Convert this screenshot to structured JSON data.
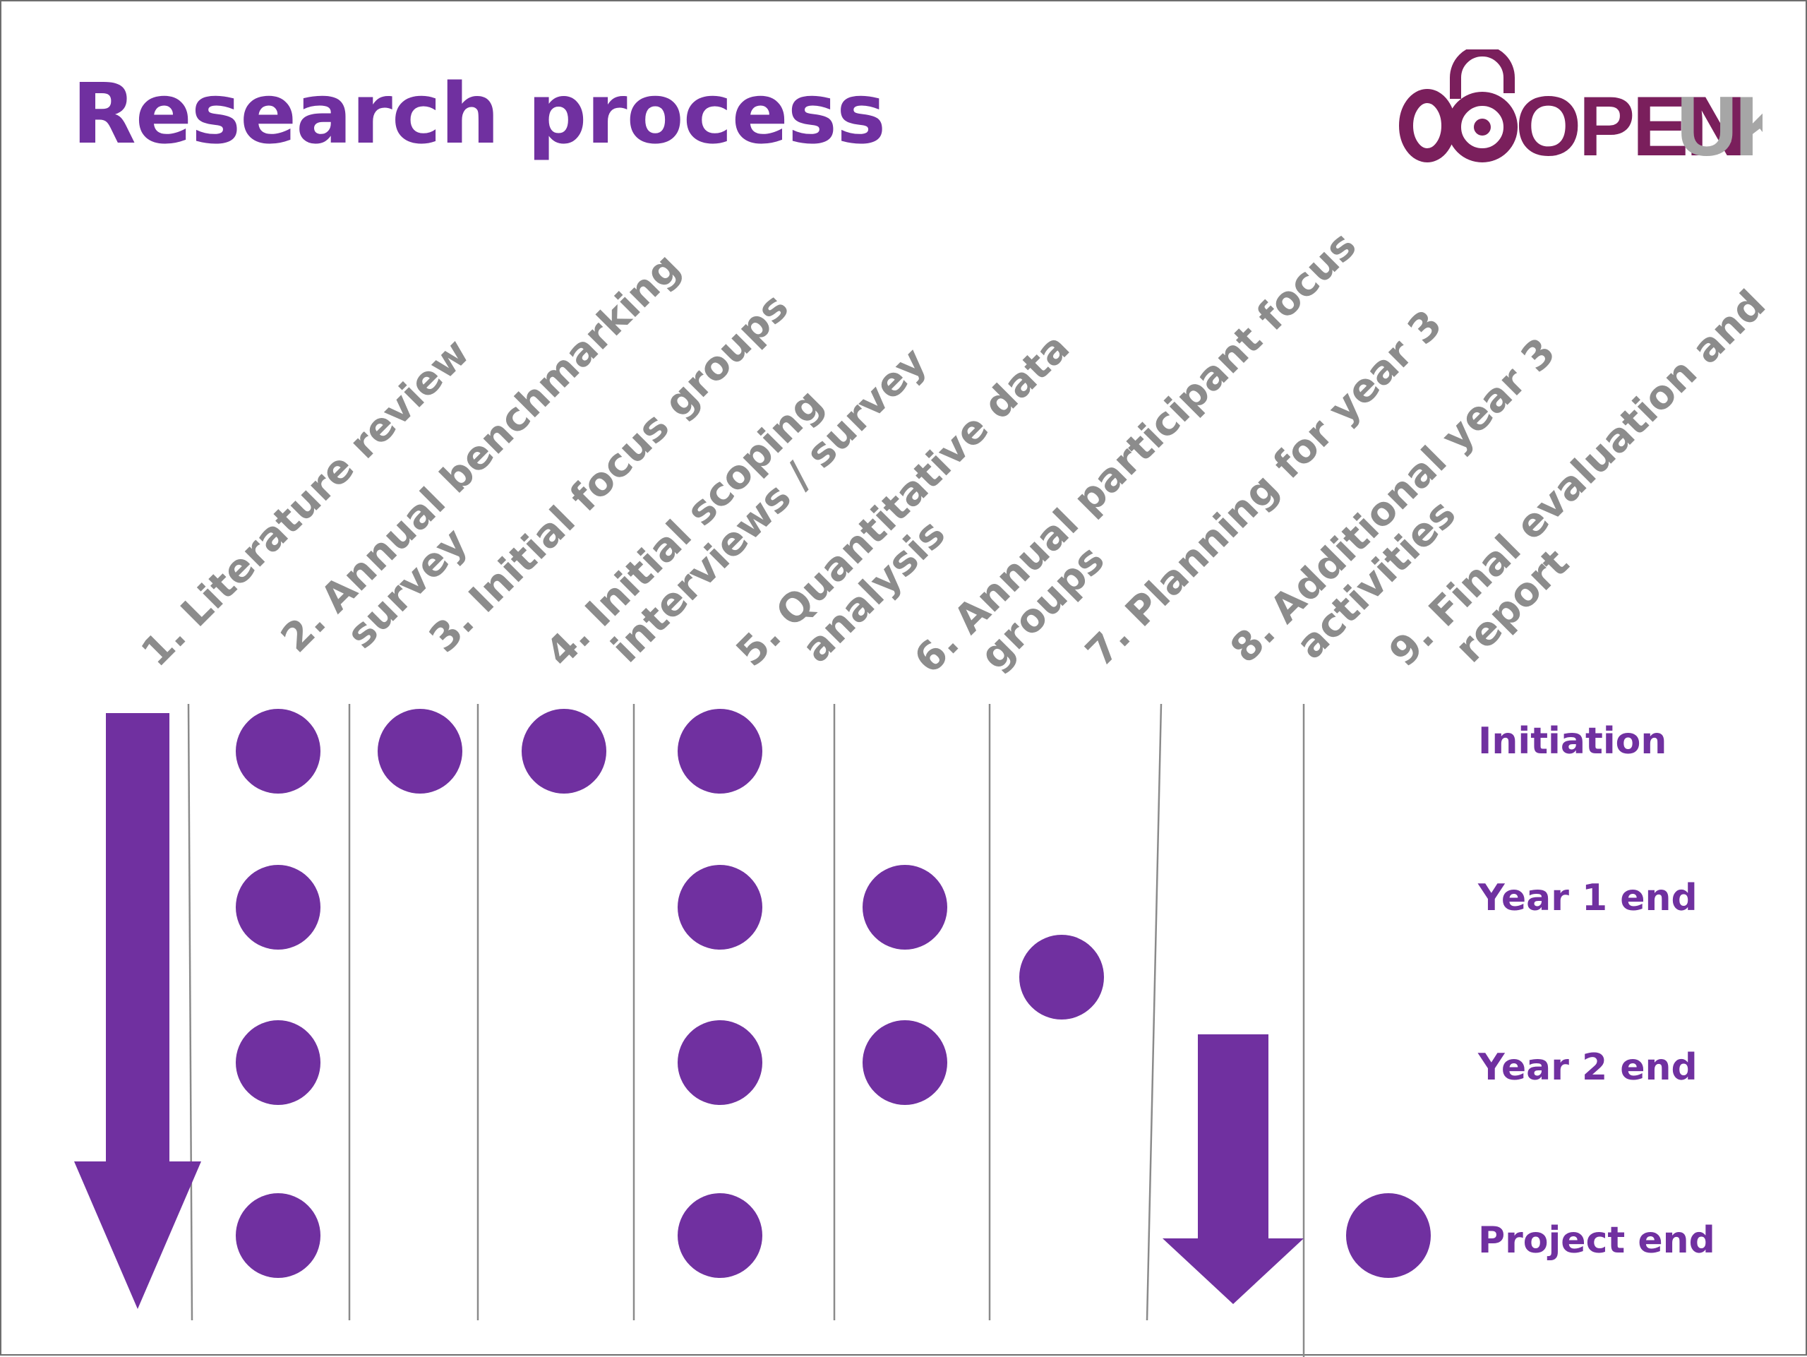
{
  "title": "Research process",
  "logo": {
    "text_primary": "OPEN",
    "text_secondary": "UK",
    "color_primary": "#7a1f5c",
    "color_secondary": "#a6a6a6"
  },
  "colors": {
    "accent": "#7030a0",
    "label_gray": "#8c8c8c",
    "divider": "#8a8a8a"
  },
  "columns": [
    {
      "label_lines": [
        "1. Literature review"
      ]
    },
    {
      "label_lines": [
        "2. Annual benchmarking",
        "survey"
      ]
    },
    {
      "label_lines": [
        "3. Initial focus groups"
      ]
    },
    {
      "label_lines": [
        "4. Initial scoping",
        "interviews / survey"
      ]
    },
    {
      "label_lines": [
        "5. Quantitative data",
        "analysis"
      ]
    },
    {
      "label_lines": [
        "6. Annual participant focus",
        "groups"
      ]
    },
    {
      "label_lines": [
        "7. Planning for year 3"
      ]
    },
    {
      "label_lines": [
        "8. Additional year 3",
        "activities"
      ]
    },
    {
      "label_lines": [
        "9. Final evaluation and",
        "report"
      ]
    }
  ],
  "rows": [
    {
      "label": "Initiation"
    },
    {
      "label": "Year 1 end"
    },
    {
      "label": "Year 2 end"
    },
    {
      "label": "Project end"
    }
  ],
  "activities": [
    {
      "column": 1,
      "row": 0
    },
    {
      "column": 1,
      "row": 1
    },
    {
      "column": 1,
      "row": 2
    },
    {
      "column": 1,
      "row": 3
    },
    {
      "column": 2,
      "row": 0
    },
    {
      "column": 3,
      "row": 0
    },
    {
      "column": 4,
      "row": 0
    },
    {
      "column": 4,
      "row": 1
    },
    {
      "column": 4,
      "row": 2
    },
    {
      "column": 4,
      "row": 3
    },
    {
      "column": 5,
      "row": 1
    },
    {
      "column": 5,
      "row": 2
    },
    {
      "column": 6,
      "row": 1.45
    },
    {
      "column": 8,
      "row": 3.08
    }
  ],
  "spans": [
    {
      "column": 0,
      "from_row": 0,
      "to_row": 3,
      "label": "continuous"
    },
    {
      "column": 7,
      "from_row": 2,
      "to_row": 3,
      "label": "continuous"
    }
  ]
}
